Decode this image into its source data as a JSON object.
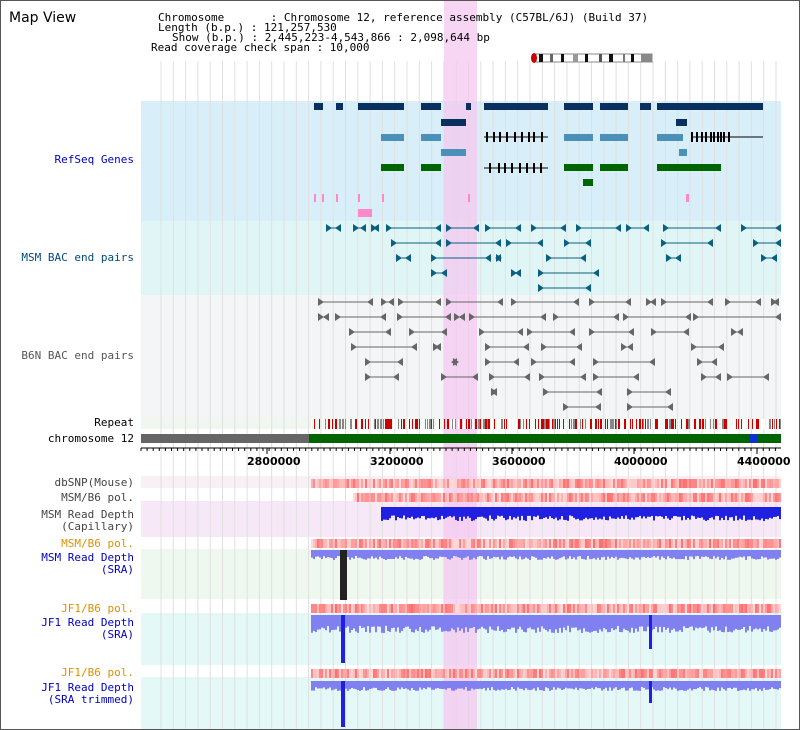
{
  "view_title": "Map View",
  "info": {
    "chromosome": "Chromosome       : Chromosome 12, reference assembly (C57BL/6J) (Build 37)",
    "length": "Length (b.p.) : 121,257,530",
    "show": "Show (b.p.) : 2,445,223-4,543,866 : 2,098,644 bp",
    "coverage": "Read coverage check span : 10,000"
  },
  "axis_ticks": [
    "2800000",
    "3200000",
    "3600000",
    "4000000",
    "4400000"
  ],
  "tracks": {
    "refseq": "RefSeq Genes",
    "msm_bac": "MSM BAC end pairs",
    "b6n_bac": "B6N BAC end pairs",
    "repeat": "Repeat",
    "chromosome": "chromosome 12",
    "dbsnp": "dbSNP(Mouse)",
    "msm_b6_pol_1": "MSM/B6 pol.",
    "msm_depth_cap_1": "MSM Read Depth",
    "msm_depth_cap_2": "(Capillary)",
    "msm_b6_pol_2": "MSM/B6 pol.",
    "msm_depth_sra_1": "MSM Read Depth",
    "msm_depth_sra_2": "(SRA)",
    "jf1_b6_pol_1": "JF1/B6 pol.",
    "jf1_depth_1": "JF1 Read Depth",
    "jf1_depth_2": "(SRA)",
    "jf1_b6_pol_2": "JF1/B6 pol.",
    "jf1_trim_1": "JF1 Read Depth",
    "jf1_trim_2": "(SRA trimmed)"
  },
  "colors": {
    "gene_dark": "#0a3060",
    "gene_light": "#4a90b8",
    "gene_green": "#006400",
    "bac_msm": "#0a6080",
    "bac_b6n": "#666666",
    "highlight": "#f4c8f0",
    "depth_blue": "#2020e0",
    "depth_light": "#8080f0",
    "label_blue": "#0000c0",
    "label_teal": "#004a80",
    "label_orange": "#e09000",
    "label_gray": "#444444"
  }
}
